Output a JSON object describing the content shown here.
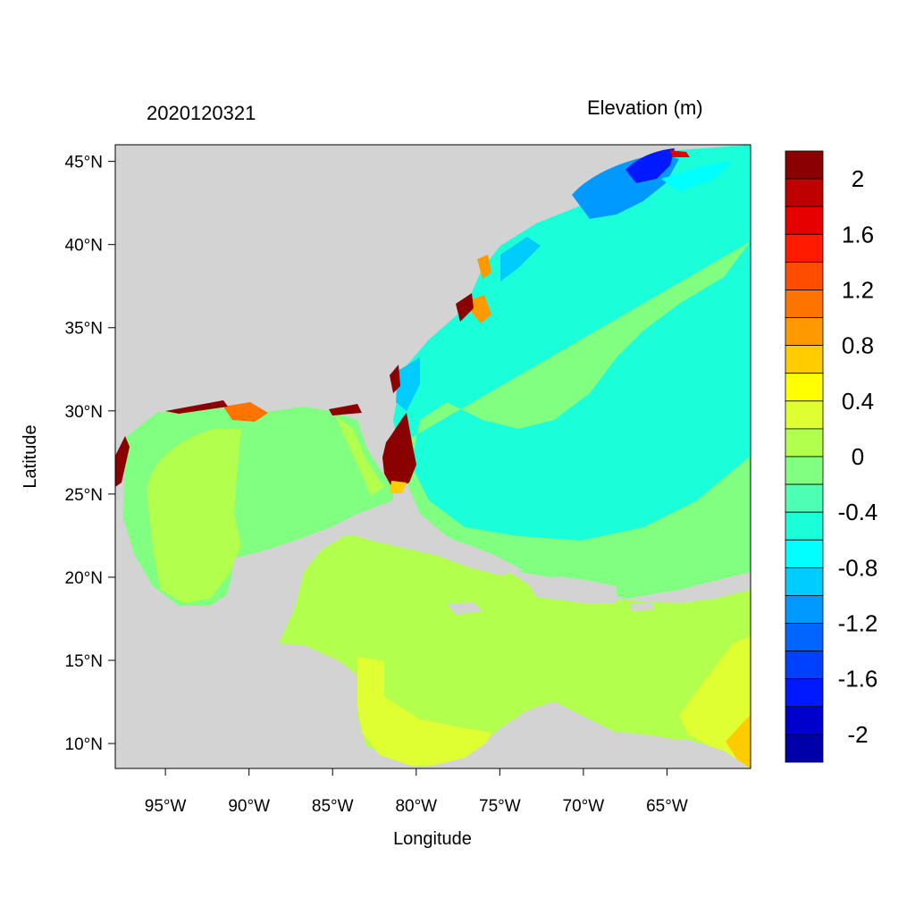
{
  "map": {
    "date_label": "2020120321",
    "title": "Elevation (m)",
    "xlabel": "Longitude",
    "ylabel": "Latitude",
    "lon_range": [
      -98,
      -60
    ],
    "lat_range": [
      8.5,
      46
    ],
    "x_ticks": [
      {
        "value": -95,
        "label": "95°W"
      },
      {
        "value": -90,
        "label": "90°W"
      },
      {
        "value": -85,
        "label": "85°W"
      },
      {
        "value": -80,
        "label": "80°W"
      },
      {
        "value": -75,
        "label": "75°W"
      },
      {
        "value": -70,
        "label": "70°W"
      },
      {
        "value": -65,
        "label": "65°W"
      }
    ],
    "y_ticks": [
      {
        "value": 45,
        "label": "45°N"
      },
      {
        "value": 40,
        "label": "40°N"
      },
      {
        "value": 35,
        "label": "35°N"
      },
      {
        "value": 30,
        "label": "30°N"
      },
      {
        "value": 25,
        "label": "25°N"
      },
      {
        "value": 20,
        "label": "20°N"
      },
      {
        "value": 15,
        "label": "15°N"
      },
      {
        "value": 10,
        "label": "10°N"
      }
    ],
    "land_color": "#d3d3d3",
    "colorbar": {
      "colors_top_to_bottom": [
        "#8b0000",
        "#bf0000",
        "#e60000",
        "#ff1a00",
        "#ff4d00",
        "#ff7300",
        "#ff9900",
        "#ffcc00",
        "#ffff00",
        "#e0ff33",
        "#b3ff4d",
        "#80ff80",
        "#4dffb3",
        "#1affd9",
        "#00ffff",
        "#00ccff",
        "#0099ff",
        "#0066ff",
        "#0040ff",
        "#0019ff",
        "#0000cc",
        "#0000aa"
      ],
      "labels": [
        "2",
        "1.6",
        "1.2",
        "0.8",
        "0.4",
        "0",
        "-0.4",
        "-0.8",
        "-1.2",
        "-1.6",
        "-2"
      ]
    }
  }
}
